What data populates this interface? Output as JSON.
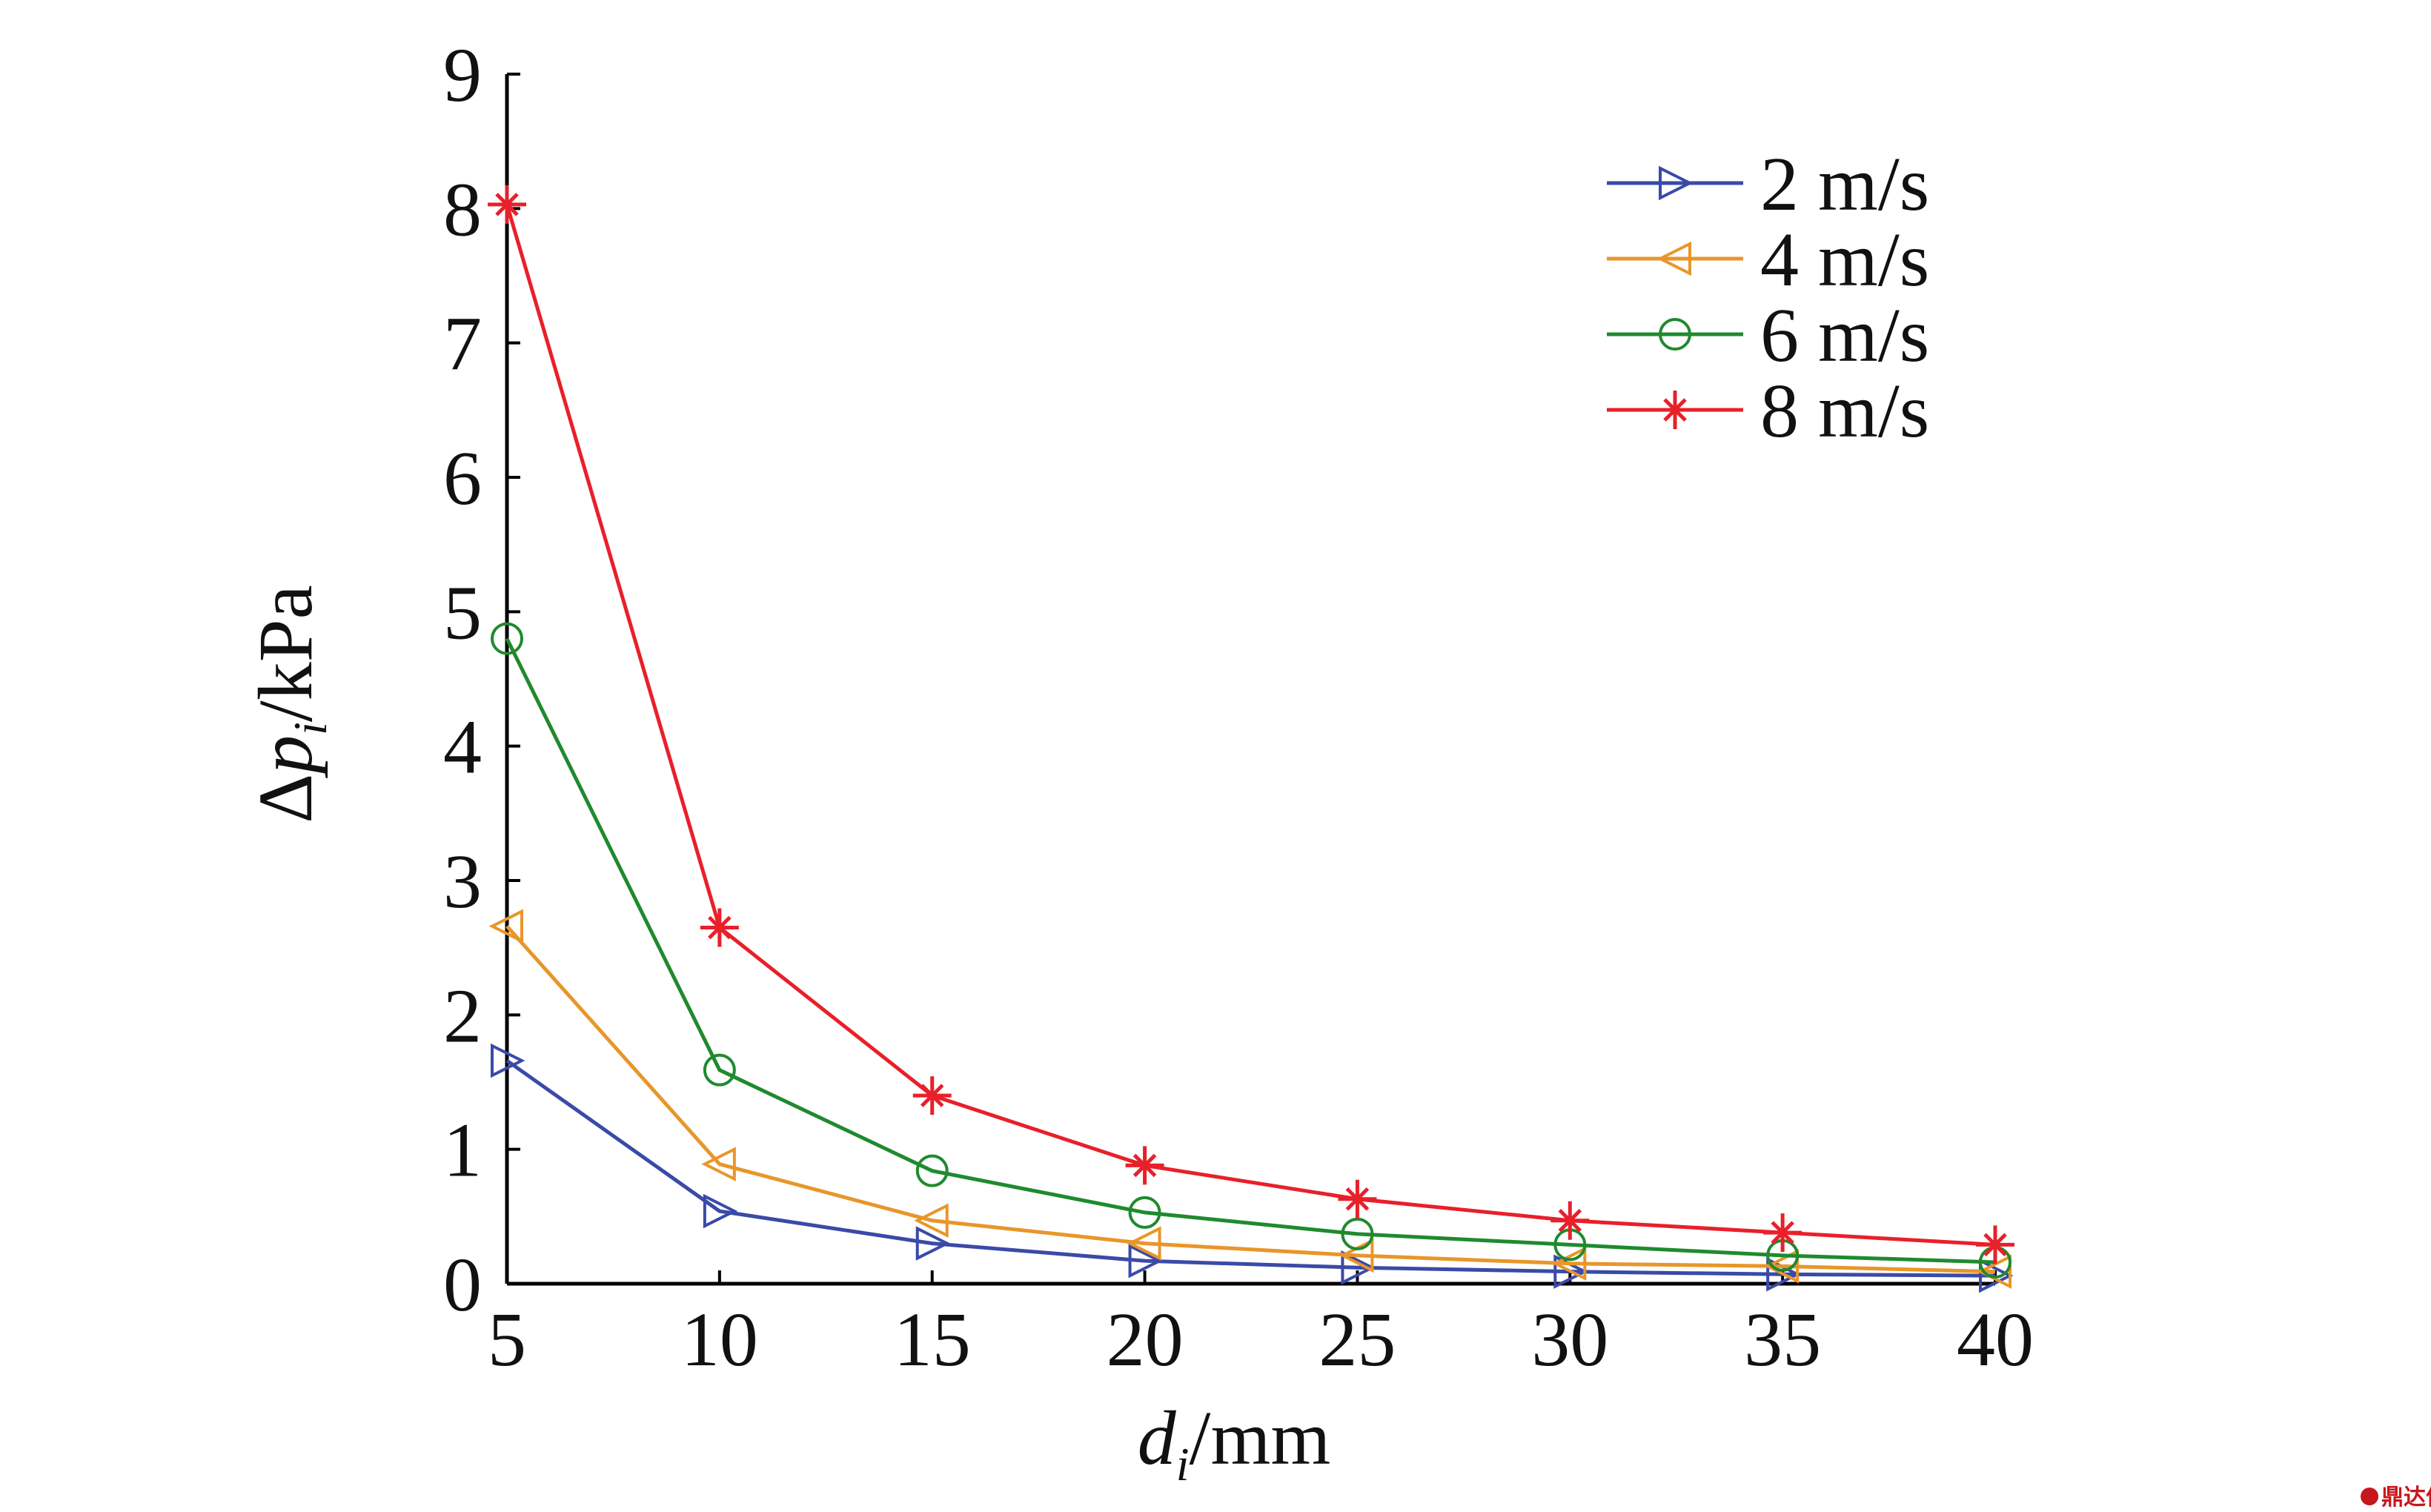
{
  "chart_data": {
    "type": "line",
    "title": "",
    "xlabel": {
      "main": "d",
      "sub": "i",
      "unit": "/mm"
    },
    "ylabel": {
      "prefix": "Δ",
      "main": "p",
      "sub": "i",
      "unit": "/kPa"
    },
    "x": [
      5,
      10,
      15,
      20,
      25,
      30,
      35,
      40
    ],
    "xlim": [
      5,
      40
    ],
    "ylim": [
      0,
      9
    ],
    "xticks": [
      "5",
      "10",
      "15",
      "20",
      "25",
      "30",
      "35",
      "40"
    ],
    "yticks": [
      "0",
      "1",
      "2",
      "3",
      "4",
      "5",
      "6",
      "7",
      "8",
      "9"
    ],
    "grid": false,
    "legend_position": "top-right",
    "series": [
      {
        "name": "2 m/s",
        "color": "#3a4aa8",
        "marker": "triangle-right",
        "values": [
          1.66,
          0.54,
          0.3,
          0.17,
          0.12,
          0.09,
          0.07,
          0.06
        ]
      },
      {
        "name": "4 m/s",
        "color": "#e8962a",
        "marker": "triangle-left",
        "values": [
          2.66,
          0.89,
          0.47,
          0.3,
          0.21,
          0.15,
          0.13,
          0.09
        ]
      },
      {
        "name": "6 m/s",
        "color": "#1f8a2e",
        "marker": "circle",
        "values": [
          4.8,
          1.59,
          0.84,
          0.53,
          0.37,
          0.29,
          0.21,
          0.16
        ]
      },
      {
        "name": "8 m/s",
        "color": "#e8202a",
        "marker": "asterisk",
        "values": [
          8.03,
          2.65,
          1.4,
          0.88,
          0.63,
          0.47,
          0.38,
          0.29
        ]
      }
    ]
  },
  "watermark": {
    "text": "鼎达信",
    "color": "#c8161d"
  }
}
